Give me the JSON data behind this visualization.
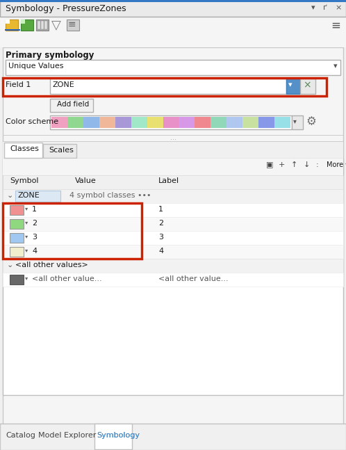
{
  "title": "Symbology - PressureZones",
  "bg_color": "#f0f0f0",
  "primary_symbology_label": "Primary symbology",
  "unique_values_label": "Unique Values",
  "field1_label": "Field 1",
  "field1_value": "ZONE",
  "add_field_label": "Add field",
  "color_scheme_label": "Color scheme",
  "color_scheme_colors": [
    "#f0a0c0",
    "#90d890",
    "#90b8e8",
    "#f0b898",
    "#a898d8",
    "#a0e8c8",
    "#e8e070",
    "#e890c8",
    "#d898e8",
    "#f08890",
    "#90d8b8",
    "#b0c8f0",
    "#c8e0a0",
    "#8898e8",
    "#98e0e8"
  ],
  "tabs": [
    "Classes",
    "Scales"
  ],
  "table_headers": [
    "Symbol",
    "Value",
    "Label"
  ],
  "zone_row_label": "ZONE",
  "zone_classes_label": "4 symbol classes •••",
  "zone_entries": [
    {
      "value": "1",
      "label": "1",
      "color": "#f09090"
    },
    {
      "value": "2",
      "label": "2",
      "color": "#90d880"
    },
    {
      "value": "3",
      "label": "3",
      "color": "#a0c8f0"
    },
    {
      "value": "4",
      "label": "4",
      "color": "#f0eecc"
    }
  ],
  "other_values_label": "‹all other values›",
  "other_symbol_color": "#686868",
  "other_value_label": "<all other value...",
  "other_label_label": "<all other value...",
  "bottom_tabs": [
    "Catalog",
    "Model Explorer",
    "Symbology"
  ],
  "active_bottom_tab": "Symbology",
  "highlight_red": "#cc2200",
  "blue_dropdown": "#5590c8",
  "header_blue": "#3060b0",
  "toolbar_blue_underline": "#2060c0",
  "panel_bg": "#f5f5f5",
  "white": "#ffffff",
  "light_gray": "#e8e8e8",
  "mid_gray": "#c8c8c8",
  "dark_gray": "#888888",
  "text_dark": "#1a1a1a",
  "text_gray": "#666666"
}
